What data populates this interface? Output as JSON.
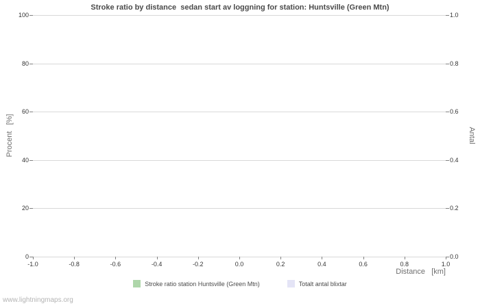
{
  "watermark": "www.lightningmaps.org",
  "chart_data": {
    "type": "line",
    "title": "Stroke ratio by distance  sedan start av loggning for station: Huntsville (Green Mtn)",
    "xlabel": "Distance   [km]",
    "ylabel_left": "Procent   [%]",
    "ylabel_right": "Antal",
    "xlim": [
      -1.0,
      1.0
    ],
    "ylim_left": [
      0,
      100
    ],
    "ylim_right": [
      0.0,
      1.0
    ],
    "grid": true,
    "legend_position": "bottom",
    "x_ticks": [
      -1.0,
      -0.8,
      -0.6,
      -0.4,
      -0.2,
      0.0,
      0.2,
      0.4,
      0.6,
      0.8,
      1.0
    ],
    "x_tick_labels": [
      "-1.0",
      "-0.8",
      "-0.6",
      "-0.4",
      "-0.2",
      "0.0",
      "0.2",
      "0.4",
      "0.6",
      "0.8",
      "1.0"
    ],
    "y_left_ticks": [
      0,
      20,
      40,
      60,
      80,
      100
    ],
    "y_left_tick_labels": [
      "0",
      "20",
      "40",
      "60",
      "80",
      "100"
    ],
    "y_right_ticks": [
      0.0,
      0.2,
      0.4,
      0.6,
      0.8,
      1.0
    ],
    "y_right_tick_labels": [
      "0.0",
      "0.2",
      "0.4",
      "0.6",
      "0.8",
      "1.0"
    ],
    "series": [
      {
        "name": "Stroke ratio station Huntsville (Green Mtn)",
        "color": "#aed6aa",
        "values": []
      },
      {
        "name": "Totalt antal blixtar",
        "color": "#e4e4f6",
        "values": []
      }
    ],
    "colors": {
      "gridline": "#d8d8d8",
      "title": "#4a4a4a",
      "axis_label": "#6e6e6e",
      "tick_label": "#333333",
      "watermark": "#b4b4b4",
      "background": "#ffffff"
    }
  }
}
